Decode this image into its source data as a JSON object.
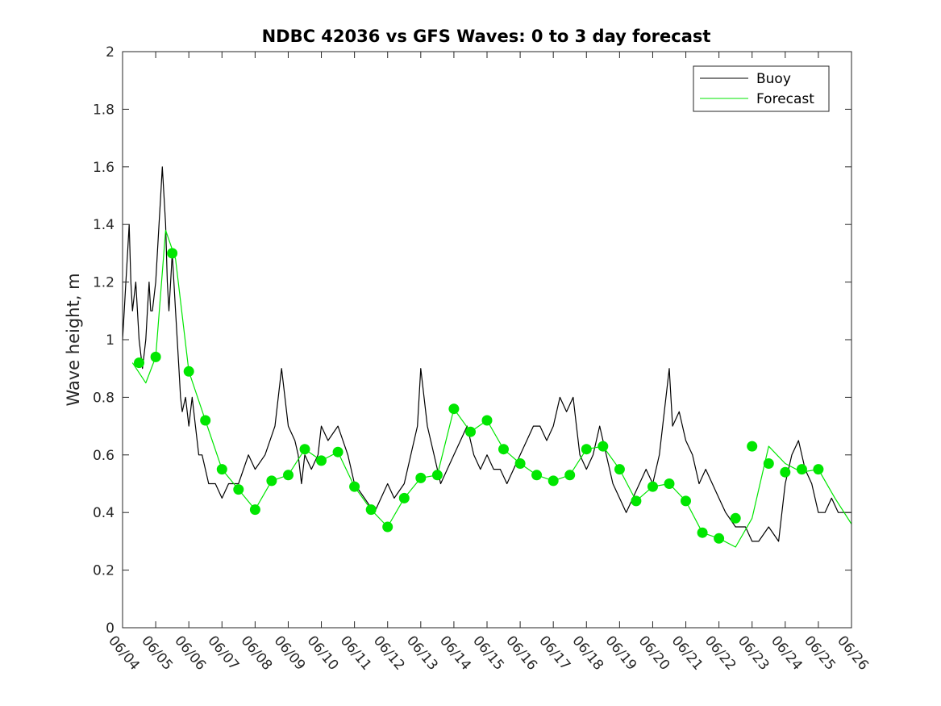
{
  "chart_data": {
    "type": "line",
    "title": "NDBC 42036 vs GFS Waves: 0 to 3 day forecast",
    "xlabel": "",
    "ylabel": "Wave height, m",
    "x_tick_labels": [
      "06/04",
      "06/05",
      "06/06",
      "06/07",
      "06/08",
      "06/09",
      "06/10",
      "06/11",
      "06/12",
      "06/13",
      "06/14",
      "06/15",
      "06/16",
      "06/17",
      "06/18",
      "06/19",
      "06/20",
      "06/21",
      "06/22",
      "06/23",
      "06/24",
      "06/25",
      "06/26"
    ],
    "y_tick_labels": [
      "0",
      "0.2",
      "0.4",
      "0.6",
      "0.8",
      "1",
      "1.2",
      "1.4",
      "1.6",
      "1.8",
      "2"
    ],
    "xlim": [
      "06/04",
      "06/26"
    ],
    "ylim": [
      0,
      2
    ],
    "grid": false,
    "legend": {
      "placement": "top-right",
      "entries": [
        {
          "label": "Buoy",
          "color": "#000000"
        },
        {
          "label": "Forecast",
          "color": "#00e600"
        }
      ]
    },
    "series": [
      {
        "name": "Buoy",
        "color": "#000000",
        "day_offset_from_06_04": [
          0,
          0.05,
          0.1,
          0.15,
          0.2,
          0.25,
          0.3,
          0.4,
          0.5,
          0.6,
          0.7,
          0.75,
          0.8,
          0.85,
          0.9,
          1.0,
          1.1,
          1.15,
          1.2,
          1.3,
          1.35,
          1.4,
          1.45,
          1.5,
          1.6,
          1.7,
          1.75,
          1.8,
          1.9,
          2.0,
          2.1,
          2.2,
          2.3,
          2.4,
          2.5,
          2.6,
          2.8,
          3.0,
          3.2,
          3.5,
          3.8,
          4.0,
          4.3,
          4.6,
          4.8,
          5.0,
          5.2,
          5.3,
          5.4,
          5.5,
          5.7,
          5.9,
          6.0,
          6.2,
          6.5,
          6.8,
          7.0,
          7.3,
          7.6,
          7.8,
          8.0,
          8.2,
          8.5,
          8.7,
          8.9,
          9.0,
          9.2,
          9.4,
          9.6,
          9.8,
          10.0,
          10.2,
          10.4,
          10.6,
          10.8,
          11.0,
          11.2,
          11.4,
          11.6,
          11.8,
          12.0,
          12.2,
          12.4,
          12.6,
          12.8,
          13.0,
          13.2,
          13.4,
          13.6,
          13.7,
          13.8,
          14.0,
          14.2,
          14.4,
          14.6,
          14.8,
          15.0,
          15.2,
          15.4,
          15.6,
          15.8,
          16.0,
          16.2,
          16.4,
          16.5,
          16.6,
          16.8,
          17.0,
          17.2,
          17.4,
          17.6,
          17.8,
          18.0,
          18.2,
          18.5,
          18.8,
          19.0,
          19.2,
          19.5,
          19.8,
          20.0,
          20.2,
          20.4,
          20.6,
          20.8,
          20.9,
          21.0,
          21.2,
          21.4,
          21.6,
          21.8,
          22.0
        ],
        "values": [
          1.0,
          1.1,
          1.2,
          1.3,
          1.4,
          1.2,
          1.1,
          1.2,
          1.0,
          0.9,
          1.0,
          1.1,
          1.2,
          1.1,
          1.1,
          1.2,
          1.4,
          1.5,
          1.6,
          1.4,
          1.2,
          1.1,
          1.2,
          1.3,
          1.1,
          0.9,
          0.8,
          0.75,
          0.8,
          0.7,
          0.8,
          0.7,
          0.6,
          0.6,
          0.55,
          0.5,
          0.5,
          0.45,
          0.5,
          0.5,
          0.6,
          0.55,
          0.6,
          0.7,
          0.9,
          0.7,
          0.65,
          0.6,
          0.5,
          0.6,
          0.55,
          0.6,
          0.7,
          0.65,
          0.7,
          0.6,
          0.5,
          0.45,
          0.4,
          0.45,
          0.5,
          0.45,
          0.5,
          0.6,
          0.7,
          0.9,
          0.7,
          0.6,
          0.5,
          0.55,
          0.6,
          0.65,
          0.7,
          0.6,
          0.55,
          0.6,
          0.55,
          0.55,
          0.5,
          0.55,
          0.6,
          0.65,
          0.7,
          0.7,
          0.65,
          0.7,
          0.8,
          0.75,
          0.8,
          0.7,
          0.6,
          0.55,
          0.6,
          0.7,
          0.6,
          0.5,
          0.45,
          0.4,
          0.45,
          0.5,
          0.55,
          0.5,
          0.6,
          0.8,
          0.9,
          0.7,
          0.75,
          0.65,
          0.6,
          0.5,
          0.55,
          0.5,
          0.45,
          0.4,
          0.35,
          0.35,
          0.3,
          0.3,
          0.35,
          0.3,
          0.5,
          0.6,
          0.65,
          0.55,
          0.5,
          0.45,
          0.4,
          0.4,
          0.45,
          0.4,
          0.4,
          0.4
        ]
      },
      {
        "name": "Forecast",
        "color": "#00e600",
        "day_offset_from_06_04": [
          0.3,
          0.7,
          1.0,
          1.3,
          1.6,
          2.0,
          2.5,
          3.0,
          3.5,
          4.0,
          4.5,
          5.0,
          5.5,
          6.0,
          6.5,
          7.0,
          7.5,
          8.0,
          8.5,
          9.0,
          9.5,
          10.0,
          10.5,
          11.0,
          11.5,
          12.0,
          12.5,
          13.0,
          13.5,
          14.0,
          14.5,
          15.0,
          15.5,
          16.0,
          16.5,
          17.0,
          17.5,
          18.0,
          18.5,
          19.0,
          19.5,
          20.0,
          20.5,
          21.0,
          21.5,
          22.0
        ],
        "values": [
          0.92,
          0.85,
          0.94,
          1.38,
          1.28,
          0.89,
          0.72,
          0.55,
          0.48,
          0.41,
          0.51,
          0.53,
          0.62,
          0.58,
          0.61,
          0.49,
          0.41,
          0.35,
          0.45,
          0.52,
          0.53,
          0.76,
          0.68,
          0.72,
          0.62,
          0.57,
          0.53,
          0.51,
          0.53,
          0.62,
          0.63,
          0.55,
          0.44,
          0.49,
          0.5,
          0.44,
          0.33,
          0.31,
          0.28,
          0.38,
          0.63,
          0.57,
          0.54,
          0.55,
          0.45,
          0.36
        ]
      }
    ],
    "forecast_markers": {
      "color": "#00e600",
      "day_offset_from_06_04": [
        0.5,
        1.0,
        1.5,
        2.0,
        2.5,
        3.0,
        3.5,
        4.0,
        4.5,
        5.0,
        5.5,
        6.0,
        6.5,
        7.0,
        7.5,
        8.0,
        8.5,
        9.0,
        9.5,
        10.0,
        10.5,
        11.0,
        11.5,
        12.0,
        12.5,
        13.0,
        13.5,
        14.0,
        14.5,
        15.0,
        15.5,
        16.0,
        16.5,
        17.0,
        17.5,
        18.0,
        18.5,
        19.0,
        19.5,
        20.0,
        20.5,
        21.0
      ],
      "values": [
        0.92,
        0.94,
        1.3,
        0.89,
        0.72,
        0.55,
        0.48,
        0.41,
        0.51,
        0.53,
        0.62,
        0.58,
        0.61,
        0.49,
        0.41,
        0.35,
        0.45,
        0.52,
        0.53,
        0.76,
        0.68,
        0.72,
        0.62,
        0.57,
        0.53,
        0.51,
        0.53,
        0.62,
        0.63,
        0.55,
        0.44,
        0.49,
        0.5,
        0.44,
        0.33,
        0.31,
        0.38,
        0.63,
        0.57,
        0.54,
        0.55,
        0.55
      ]
    }
  }
}
